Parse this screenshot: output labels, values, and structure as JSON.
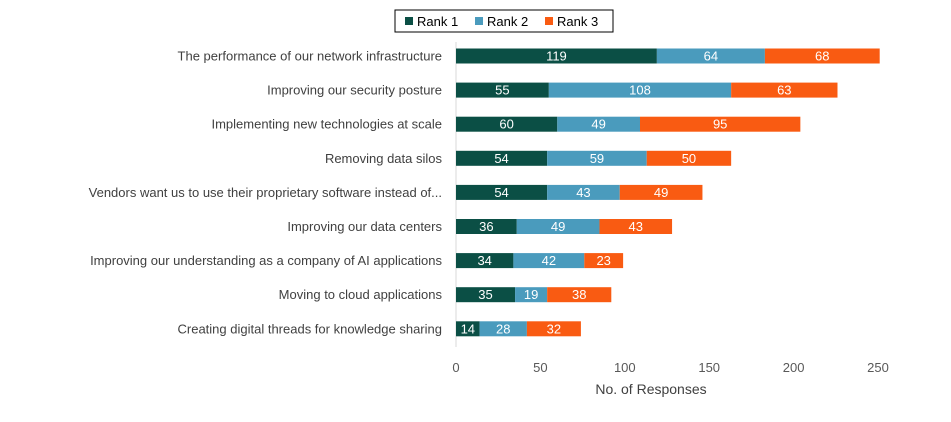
{
  "chart_data": {
    "type": "bar",
    "orientation": "horizontal",
    "stacked": true,
    "categories": [
      "The performance of our network infrastructure",
      "Improving our security posture",
      "Implementing new technologies at scale",
      "Removing data silos",
      "Vendors want us to use their proprietary software instead of...",
      "Improving our data centers",
      "Improving our understanding as a company of AI applications",
      "Moving to cloud applications",
      "Creating digital threads for knowledge sharing"
    ],
    "series": [
      {
        "name": "Rank 1",
        "color": "#0b4f45",
        "values": [
          119,
          55,
          60,
          54,
          54,
          36,
          34,
          35,
          14
        ]
      },
      {
        "name": "Rank 2",
        "color": "#4a9bbd",
        "values": [
          64,
          108,
          49,
          59,
          43,
          49,
          42,
          19,
          28
        ]
      },
      {
        "name": "Rank 3",
        "color": "#f95b12",
        "values": [
          68,
          63,
          95,
          50,
          49,
          43,
          23,
          38,
          32
        ]
      }
    ],
    "xlabel": "No. of Responses",
    "ylabel": "",
    "xlim": [
      0,
      250
    ],
    "xticks": [
      0,
      50,
      100,
      150,
      200,
      250
    ],
    "grid": false,
    "legend": "top-center",
    "data_labels": true
  }
}
